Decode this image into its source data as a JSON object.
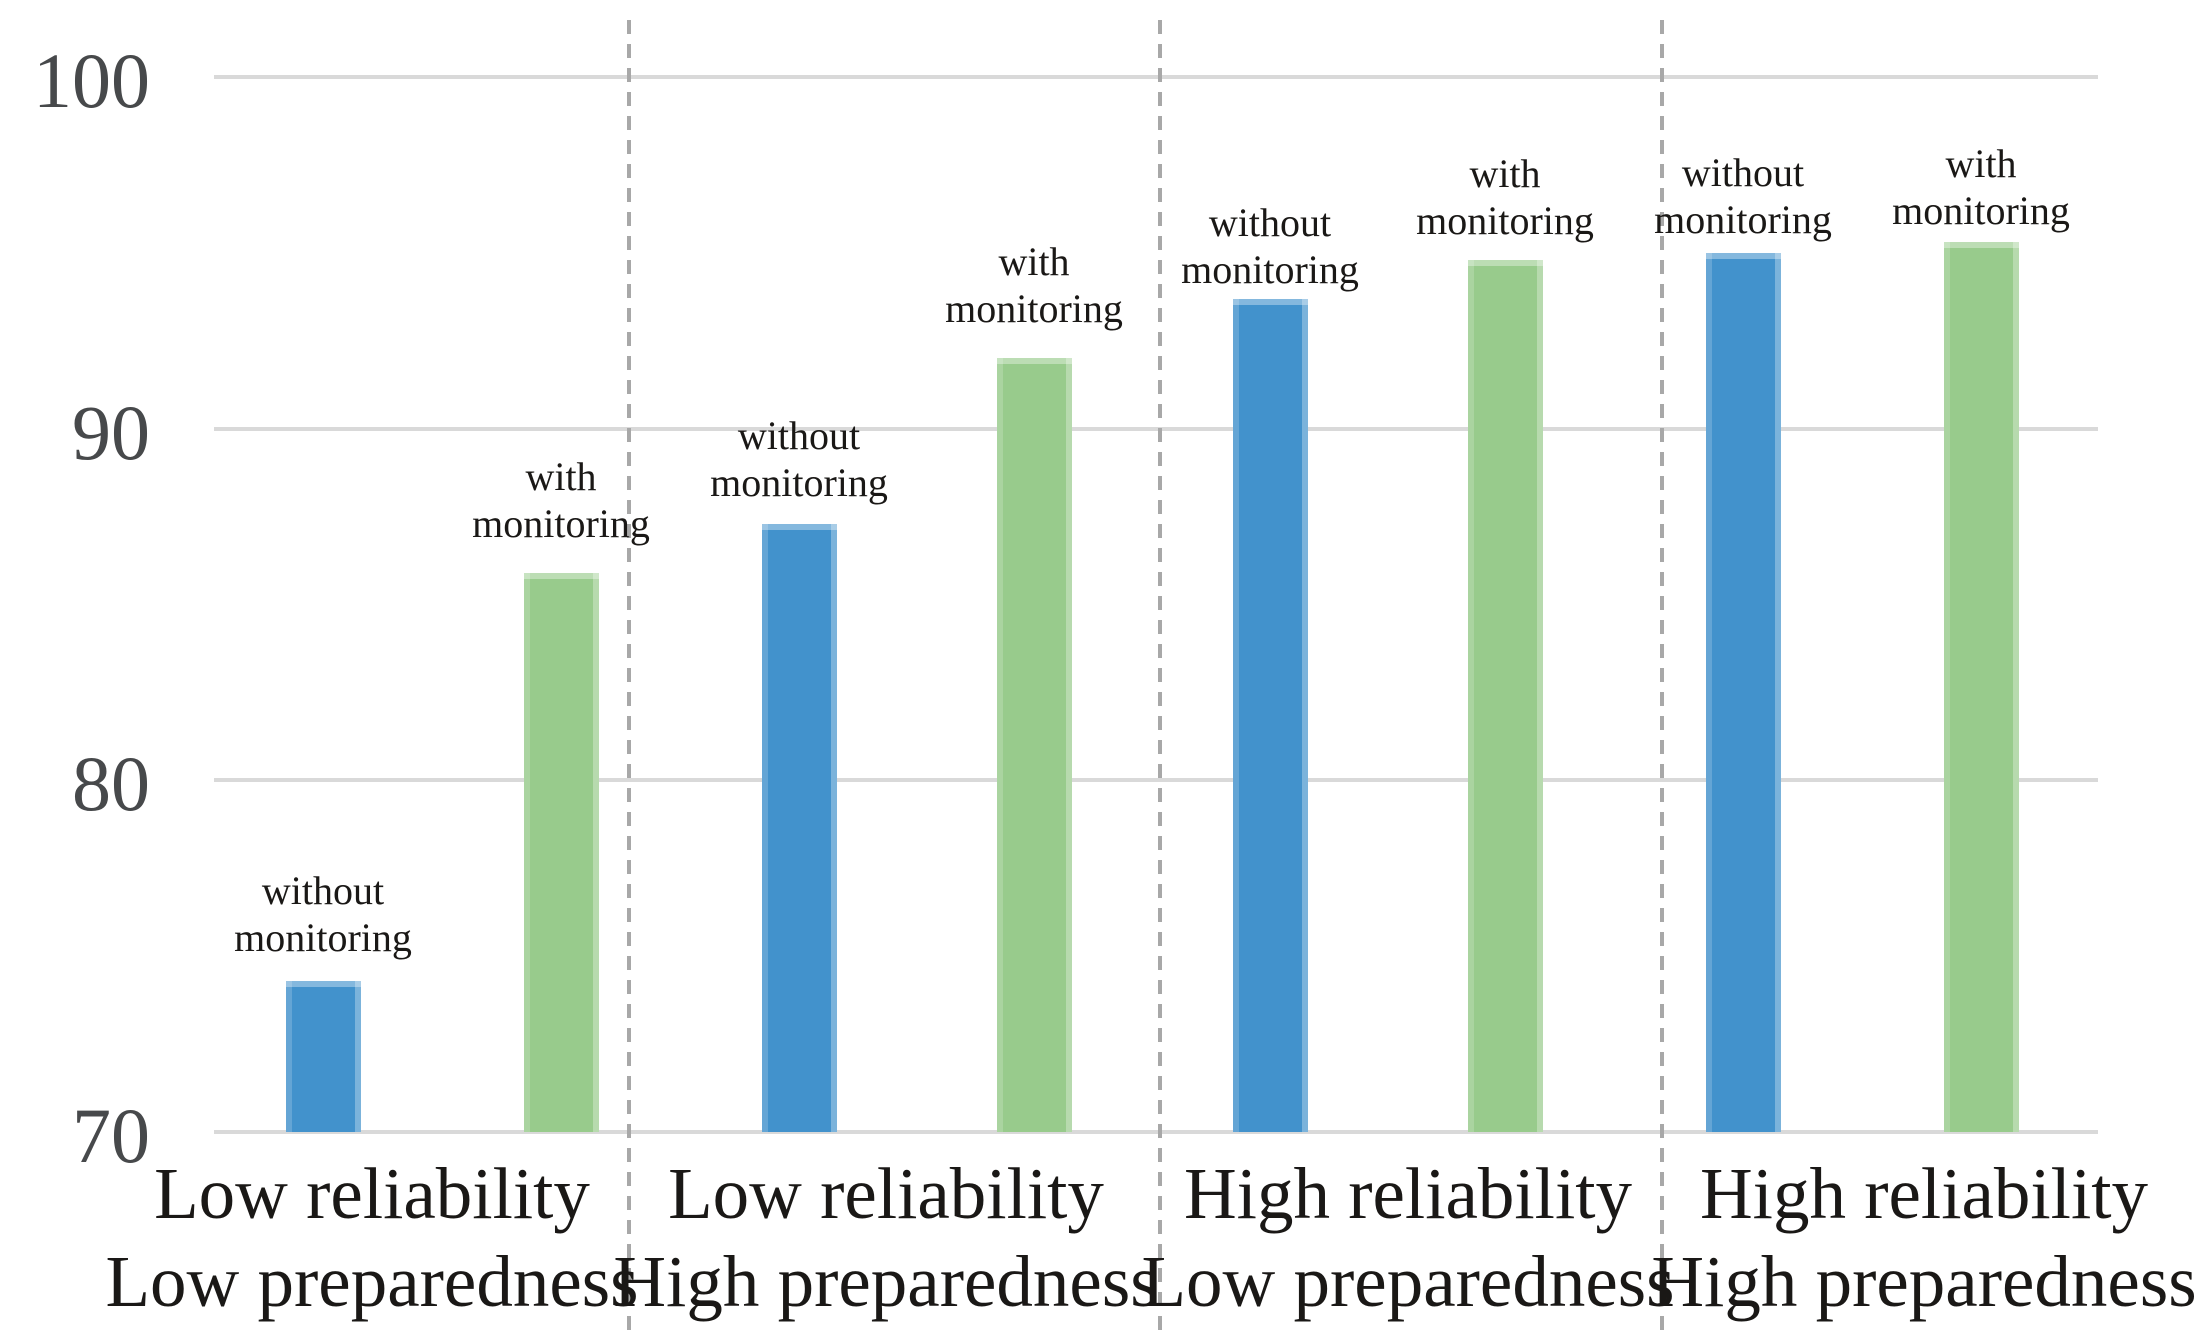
{
  "figure": {
    "background": "#FFFFFF"
  },
  "chart_data": {
    "type": "bar",
    "title": "",
    "xlabel": "",
    "ylabel": "",
    "categories": [
      {
        "line1": "Low reliability",
        "line2": "Low preparedness"
      },
      {
        "line1": "Low reliability",
        "line2": "High preparedness"
      },
      {
        "line1": "High reliability",
        "line2": "Low preparedness"
      },
      {
        "line1": "High reliability",
        "line2": "High preparedness"
      }
    ],
    "series": [
      {
        "name": "without monitoring",
        "label_lines": [
          "without",
          "monitoring"
        ],
        "color": "#4292CC",
        "values": [
          74.3,
          87.3,
          93.7,
          95.0
        ]
      },
      {
        "name": "with monitoring",
        "label_lines": [
          "with",
          "monitoring"
        ],
        "color": "#98CB8C",
        "values": [
          85.9,
          92.0,
          94.8,
          95.3
        ]
      }
    ],
    "y_axis": {
      "min": 70,
      "max": 100,
      "ticks": [
        70,
        80,
        90,
        100
      ],
      "tick_labels": [
        "70",
        "80",
        "90",
        "100"
      ]
    },
    "grid": true,
    "legend": "none",
    "group_separators": "dashed",
    "bar_value_labels": "series name above each bar",
    "colors": {
      "grid": "#D9D9D9",
      "separator": "#A8A8A8",
      "tick_text": "#47494B",
      "label_text": "#1A1816"
    }
  }
}
